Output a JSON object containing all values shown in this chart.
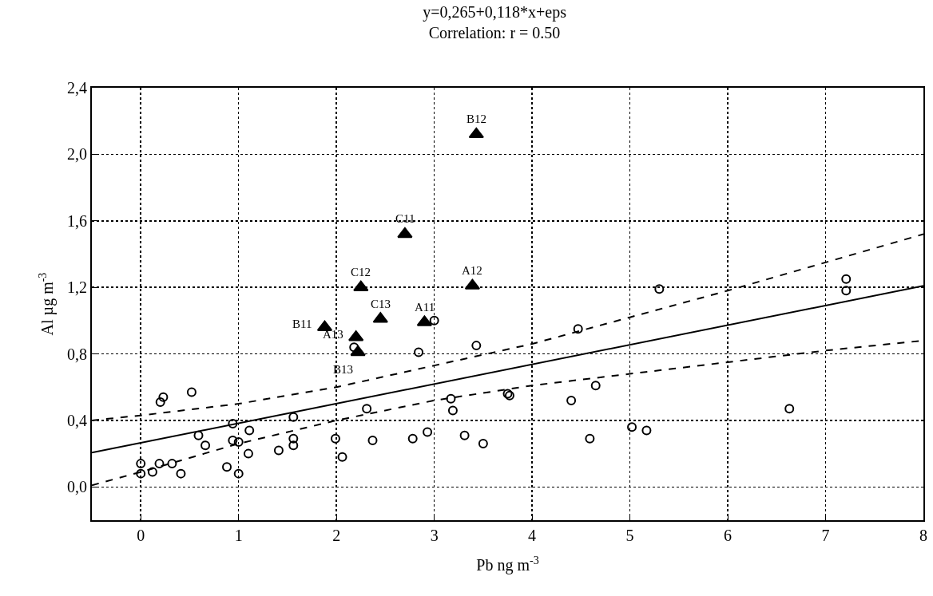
{
  "chart_data": {
    "type": "scatter",
    "title": "y=0,265+0,118*x+eps",
    "subtitle": "Correlation: r = 0.50",
    "xlabel": "Pb ng m$^{-3}$",
    "ylabel": "Al µg m$^{-3}$",
    "xlim": [
      -0.5,
      8
    ],
    "xticks": [
      0,
      1,
      2,
      3,
      4,
      5,
      6,
      7,
      8
    ],
    "ylim": [
      -0.2,
      2.4
    ],
    "yticks": [
      {
        "value": 0,
        "label": "0,0"
      },
      {
        "value": 0.4,
        "label": "0,4"
      },
      {
        "value": 0.8,
        "label": "0,8"
      },
      {
        "value": 1.2,
        "label": "1,2"
      },
      {
        "value": 1.6,
        "label": "1,6"
      },
      {
        "value": 2.0,
        "label": "2,0"
      },
      {
        "value": 2.4,
        "label": "2,4"
      }
    ],
    "grid": true,
    "series": [
      {
        "type": "scatter",
        "marker": "circle",
        "color": "#000000",
        "x": [
          0,
          0,
          0.12,
          0.19,
          0.32,
          0.41,
          0.2,
          0.23,
          0.52,
          0.59,
          0.66,
          0.88,
          0.94,
          0.94,
          1.0,
          1.0,
          1.11,
          1.1,
          1.41,
          1.56,
          1.56,
          1.56,
          1.99,
          2.06,
          2.31,
          2.37,
          2.18,
          2.78,
          2.84,
          2.93,
          3.0,
          3.17,
          3.19,
          3.31,
          3.43,
          3.5,
          3.75,
          3.77,
          4.4,
          4.47,
          4.59,
          4.65,
          5.02,
          5.17,
          5.3,
          6.63,
          7.21,
          7.21
        ],
        "values": [
          0.14,
          0.08,
          0.09,
          0.14,
          0.14,
          0.08,
          0.51,
          0.54,
          0.57,
          0.31,
          0.25,
          0.12,
          0.38,
          0.28,
          0.27,
          0.08,
          0.34,
          0.2,
          0.22,
          0.42,
          0.29,
          0.25,
          0.29,
          0.18,
          0.47,
          0.28,
          0.84,
          0.29,
          0.81,
          0.33,
          1.0,
          0.53,
          0.46,
          0.31,
          0.85,
          0.26,
          0.56,
          0.55,
          0.52,
          0.95,
          0.29,
          0.61,
          0.36,
          0.34,
          1.19,
          0.47,
          1.25,
          1.18
        ]
      },
      {
        "type": "scatter",
        "marker": "triangle",
        "color": "#000000",
        "x": [
          3.43,
          2.7,
          2.25,
          3.39,
          2.45,
          2.9,
          1.88,
          2.2,
          2.22
        ],
        "values": [
          2.12,
          1.52,
          1.2,
          1.21,
          1.01,
          0.99,
          0.96,
          0.9,
          0.81
        ]
      },
      {
        "type": "line",
        "marker": "none",
        "line_style": "solid",
        "color": "#000000",
        "x": [
          -0.5,
          8
        ],
        "values": [
          0.206,
          1.209
        ]
      },
      {
        "type": "line",
        "marker": "none",
        "line_style": "dashed",
        "color": "#000000",
        "x": [
          -0.5,
          0,
          1,
          2,
          3,
          4,
          5,
          6,
          7,
          8
        ],
        "values": [
          0.4,
          0.43,
          0.5,
          0.6,
          0.73,
          0.86,
          1.02,
          1.18,
          1.35,
          1.52
        ]
      },
      {
        "type": "line",
        "marker": "none",
        "line_style": "dashed",
        "color": "#000000",
        "x": [
          -0.5,
          0,
          1,
          2,
          3,
          4,
          5,
          6,
          7,
          8
        ],
        "values": [
          0.01,
          0.09,
          0.26,
          0.4,
          0.52,
          0.61,
          0.68,
          0.75,
          0.82,
          0.88
        ]
      }
    ],
    "annotations": [
      {
        "text": "B12",
        "x": 3.43,
        "y": 2.12
      },
      {
        "text": "C11",
        "x": 2.7,
        "y": 1.52
      },
      {
        "text": "C12",
        "x": 2.25,
        "y": 1.2
      },
      {
        "text": "A12",
        "x": 3.39,
        "y": 1.21
      },
      {
        "text": "C13",
        "x": 2.45,
        "y": 1.01
      },
      {
        "text": "A11",
        "x": 2.9,
        "y": 0.99
      },
      {
        "text": "B11",
        "x": 1.88,
        "y": 0.96
      },
      {
        "text": "A13",
        "x": 2.2,
        "y": 0.9
      },
      {
        "text": "B13",
        "x": 2.22,
        "y": 0.81
      }
    ]
  }
}
